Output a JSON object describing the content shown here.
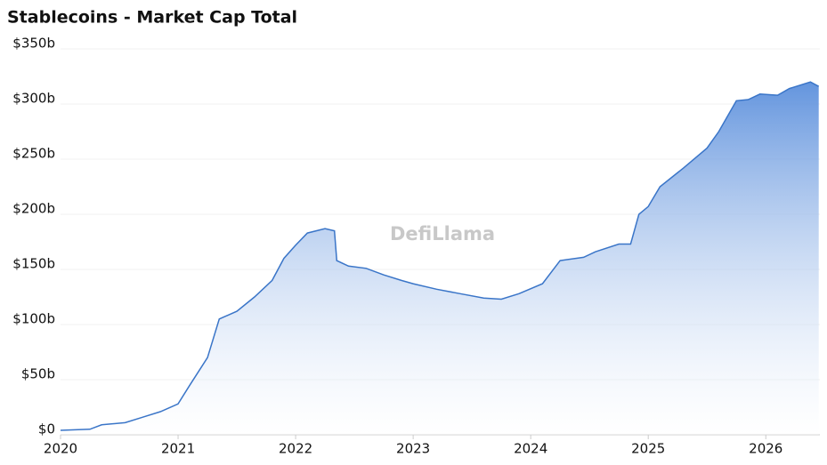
{
  "chart_data": {
    "type": "area",
    "title": "Stablecoins - Market Cap Total",
    "watermark": "DefiLlama",
    "x": [
      2020.0,
      2020.25,
      2020.35,
      2020.55,
      2020.7,
      2020.85,
      2021.0,
      2021.1,
      2021.25,
      2021.35,
      2021.5,
      2021.65,
      2021.8,
      2021.9,
      2022.0,
      2022.1,
      2022.25,
      2022.33,
      2022.35,
      2022.45,
      2022.6,
      2022.75,
      2022.9,
      2023.0,
      2023.2,
      2023.4,
      2023.6,
      2023.75,
      2023.9,
      2024.1,
      2024.25,
      2024.45,
      2024.55,
      2024.75,
      2024.85,
      2024.92,
      2025.0,
      2025.1,
      2025.3,
      2025.5,
      2025.6,
      2025.75,
      2025.85,
      2025.95,
      2026.1,
      2026.2,
      2026.38,
      2026.45
    ],
    "values": [
      4,
      5,
      9,
      11,
      16,
      21,
      28,
      45,
      70,
      105,
      112,
      125,
      140,
      160,
      172,
      183,
      187,
      185,
      158,
      153,
      151,
      145,
      140,
      137,
      132,
      128,
      124,
      123,
      128,
      137,
      158,
      161,
      166,
      173,
      173,
      200,
      207,
      225,
      242,
      260,
      275,
      303,
      304,
      309,
      308,
      314,
      320,
      316
    ],
    "color": "#3a75c8",
    "fill_color": "#5b8fdc",
    "xlim": [
      2020,
      2026.46
    ],
    "xticks": [
      2020,
      2021,
      2022,
      2023,
      2024,
      2025,
      2026
    ],
    "ylim": [
      0,
      350
    ],
    "yticks": [
      {
        "value": 0,
        "label": "$0"
      },
      {
        "value": 50,
        "label": "$50b"
      },
      {
        "value": 100,
        "label": "$100b"
      },
      {
        "value": 150,
        "label": "$150b"
      },
      {
        "value": 200,
        "label": "$200b"
      },
      {
        "value": 250,
        "label": "$250b"
      },
      {
        "value": 300,
        "label": "$300b"
      },
      {
        "value": 350,
        "label": "$350b"
      }
    ],
    "grid": true
  }
}
